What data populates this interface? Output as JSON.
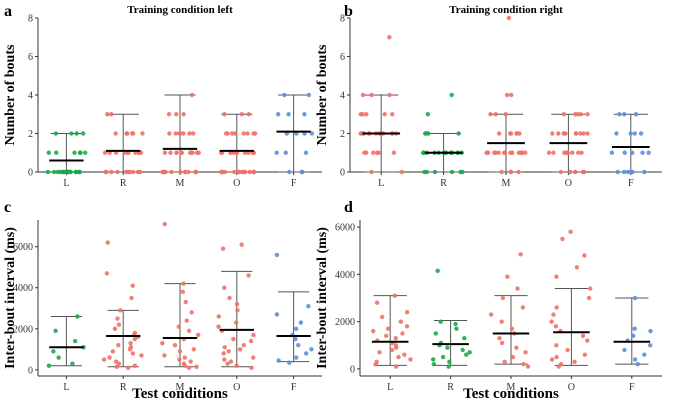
{
  "chart_data": [
    {
      "type": "scatter",
      "panel_letter": "a",
      "title": "Training condition left",
      "xlabel": "",
      "ylabel": "Number of bouts",
      "ylim": [
        0,
        8
      ],
      "yticks": [
        0,
        2,
        4,
        6,
        8
      ],
      "categories": [
        "L",
        "R",
        "M",
        "O",
        "F"
      ],
      "series": [
        {
          "category": "L",
          "color": "#1aa84a",
          "mean": 0.6,
          "error_low": 0,
          "error_high": 2.0,
          "points": [
            0,
            0,
            0,
            0,
            0,
            0,
            0,
            0,
            0,
            0,
            0,
            0,
            0,
            0,
            0,
            0,
            0,
            1,
            1,
            1,
            1,
            1,
            1,
            2,
            2,
            2,
            2
          ]
        },
        {
          "category": "R",
          "color": "#f07167",
          "mean": 1.1,
          "error_low": 0,
          "error_high": 3.0,
          "points": [
            0,
            0,
            0,
            0,
            0,
            0,
            0,
            0,
            0,
            0,
            0,
            0,
            1,
            1,
            1,
            1,
            1,
            1,
            1,
            1,
            1,
            1,
            2,
            2,
            2,
            2,
            2,
            2,
            2,
            3,
            3
          ]
        },
        {
          "category": "M",
          "color": "#f07167",
          "mean": 1.2,
          "error_low": 0,
          "error_high": 4.0,
          "points": [
            0,
            0,
            0,
            0,
            0,
            0,
            0,
            0,
            0,
            0,
            0,
            0,
            0,
            1,
            1,
            1,
            1,
            1,
            1,
            1,
            1,
            1,
            1,
            1,
            2,
            2,
            2,
            2,
            2,
            2,
            2,
            3,
            3,
            3,
            4
          ]
        },
        {
          "category": "O",
          "color": "#f07167",
          "mean": 1.1,
          "error_low": 0,
          "error_high": 3.0,
          "points": [
            0,
            0,
            0,
            0,
            0,
            0,
            0,
            0,
            0,
            0,
            0,
            0,
            0,
            0,
            1,
            1,
            1,
            1,
            1,
            1,
            1,
            1,
            1,
            1,
            1,
            2,
            2,
            2,
            2,
            2,
            2,
            2,
            2,
            3,
            3,
            3
          ]
        },
        {
          "category": "F",
          "color": "#5b8fd9",
          "mean": 2.1,
          "error_low": 0,
          "error_high": 4.0,
          "points": [
            0,
            0,
            0,
            1,
            1,
            1,
            2,
            2,
            2,
            2,
            3,
            3,
            3,
            4,
            4
          ]
        }
      ]
    },
    {
      "type": "scatter",
      "panel_letter": "b",
      "title": "Training condition right",
      "xlabel": "",
      "ylabel": "Number of bouts",
      "ylim": [
        0,
        8
      ],
      "yticks": [
        0,
        2,
        4,
        6,
        8
      ],
      "categories": [
        "L",
        "R",
        "M",
        "O",
        "F"
      ],
      "series": [
        {
          "category": "L",
          "color": "#f07167",
          "mean": 2.0,
          "error_low": 0,
          "error_high": 4.0,
          "points": [
            0,
            0,
            1,
            1,
            1,
            1,
            1,
            1,
            2,
            2,
            2,
            2,
            2,
            2,
            2,
            2,
            2,
            2,
            2,
            2,
            2,
            3,
            3,
            3,
            3,
            3,
            4,
            4,
            4,
            7
          ]
        },
        {
          "category": "R",
          "color": "#1aa84a",
          "mean": 1.0,
          "error_low": 0,
          "error_high": 2.0,
          "points": [
            0,
            0,
            0,
            0,
            0,
            0,
            1,
            1,
            1,
            1,
            1,
            1,
            1,
            1,
            1,
            1,
            1,
            1,
            1,
            1,
            1,
            2,
            2,
            2,
            2,
            3,
            4
          ]
        },
        {
          "category": "M",
          "color": "#f07167",
          "mean": 1.5,
          "error_low": 0,
          "error_high": 3.0,
          "points": [
            0,
            0,
            0,
            0,
            1,
            1,
            1,
            1,
            1,
            1,
            1,
            1,
            1,
            1,
            1,
            1,
            1,
            1,
            2,
            2,
            2,
            2,
            2,
            2,
            3,
            3,
            3,
            4,
            4,
            8
          ]
        },
        {
          "category": "O",
          "color": "#f07167",
          "mean": 1.5,
          "error_low": 0,
          "error_high": 3.0,
          "points": [
            0,
            0,
            0,
            0,
            0,
            0,
            1,
            1,
            1,
            1,
            1,
            1,
            1,
            1,
            1,
            1,
            2,
            2,
            2,
            2,
            2,
            2,
            2,
            2,
            2,
            2,
            3,
            3,
            3,
            3,
            3
          ]
        },
        {
          "category": "F",
          "color": "#5b8fd9",
          "mean": 1.3,
          "error_low": 0,
          "error_high": 3.0,
          "points": [
            0,
            0,
            0,
            0,
            0,
            0,
            1,
            1,
            1,
            1,
            1,
            2,
            2,
            2,
            2,
            3,
            3,
            3
          ]
        }
      ]
    },
    {
      "type": "scatter",
      "panel_letter": "c",
      "title": "",
      "xlabel": "Test conditions",
      "ylabel": "Inter-bout interval (ms)",
      "ylim": [
        -300,
        7300
      ],
      "yticks": [
        0,
        2000,
        4000,
        6000
      ],
      "categories": [
        "L",
        "R",
        "M",
        "O",
        "F"
      ],
      "series": [
        {
          "category": "L",
          "color": "#1aa84a",
          "mean": 1100,
          "error_low": 200,
          "error_high": 2600,
          "points": [
            200,
            300,
            600,
            900,
            1100,
            1400,
            1900,
            2600
          ]
        },
        {
          "category": "R",
          "color": "#f07167",
          "mean": 1650,
          "error_low": 150,
          "error_high": 2900,
          "points": [
            100,
            150,
            200,
            300,
            400,
            500,
            600,
            700,
            800,
            900,
            1000,
            1100,
            1200,
            1300,
            1500,
            1600,
            1700,
            1800,
            2000,
            2200,
            2500,
            2900,
            3500,
            4100,
            4700,
            6200
          ]
        },
        {
          "category": "M",
          "color": "#f07167",
          "mean": 1550,
          "error_low": 150,
          "error_high": 4200,
          "points": [
            100,
            150,
            200,
            300,
            400,
            500,
            600,
            700,
            900,
            1000,
            1200,
            1300,
            1500,
            1700,
            1900,
            2100,
            2400,
            2800,
            3300,
            3800,
            4200,
            7100
          ]
        },
        {
          "category": "O",
          "color": "#f07167",
          "mean": 1950,
          "error_low": 150,
          "error_high": 4800,
          "points": [
            100,
            200,
            300,
            400,
            500,
            600,
            800,
            900,
            1000,
            1100,
            1200,
            1400,
            1500,
            1700,
            1900,
            2100,
            2300,
            2600,
            2900,
            3200,
            3500,
            4000,
            4600,
            5900,
            6100
          ]
        },
        {
          "category": "F",
          "color": "#5b8fd9",
          "mean": 1650,
          "error_low": 400,
          "error_high": 3800,
          "points": [
            350,
            450,
            600,
            800,
            1000,
            1200,
            1500,
            1700,
            2000,
            2300,
            2700,
            3100,
            5600
          ]
        }
      ]
    },
    {
      "type": "scatter",
      "panel_letter": "d",
      "title": "",
      "xlabel": "Test conditions",
      "ylabel": "Inter-bout interval (ms)",
      "ylim": [
        -300,
        6300
      ],
      "yticks": [
        0,
        2000,
        4000,
        6000
      ],
      "categories": [
        "L",
        "R",
        "M",
        "O",
        "F"
      ],
      "series": [
        {
          "category": "L",
          "color": "#f07167",
          "mean": 1150,
          "error_low": 150,
          "error_high": 3100,
          "points": [
            100,
            200,
            300,
            400,
            500,
            600,
            700,
            800,
            900,
            1000,
            1100,
            1200,
            1300,
            1400,
            1500,
            1600,
            1700,
            1800,
            2000,
            2200,
            2400,
            2800,
            3100
          ]
        },
        {
          "category": "R",
          "color": "#1aa84a",
          "mean": 1050,
          "error_low": 150,
          "error_high": 2050,
          "points": [
            100,
            200,
            300,
            400,
            500,
            600,
            700,
            800,
            900,
            1000,
            1100,
            1300,
            1500,
            1700,
            1900,
            2000,
            4150
          ]
        },
        {
          "category": "M",
          "color": "#f07167",
          "mean": 1500,
          "error_low": 200,
          "error_high": 3100,
          "points": [
            100,
            200,
            300,
            500,
            700,
            900,
            1100,
            1300,
            1500,
            1700,
            2000,
            2300,
            2600,
            3000,
            3400,
            3900,
            4850
          ]
        },
        {
          "category": "O",
          "color": "#f07167",
          "mean": 1550,
          "error_low": 150,
          "error_high": 3400,
          "points": [
            100,
            200,
            300,
            400,
            500,
            600,
            800,
            1000,
            1200,
            1400,
            1600,
            1800,
            2000,
            2300,
            2600,
            3000,
            3400,
            3900,
            4300,
            4800,
            5500,
            5800
          ]
        },
        {
          "category": "F",
          "color": "#5b8fd9",
          "mean": 1150,
          "error_low": 200,
          "error_high": 3000,
          "points": [
            200,
            400,
            600,
            800,
            1000,
            1200,
            1400,
            1600,
            1700,
            3000
          ]
        }
      ]
    }
  ]
}
